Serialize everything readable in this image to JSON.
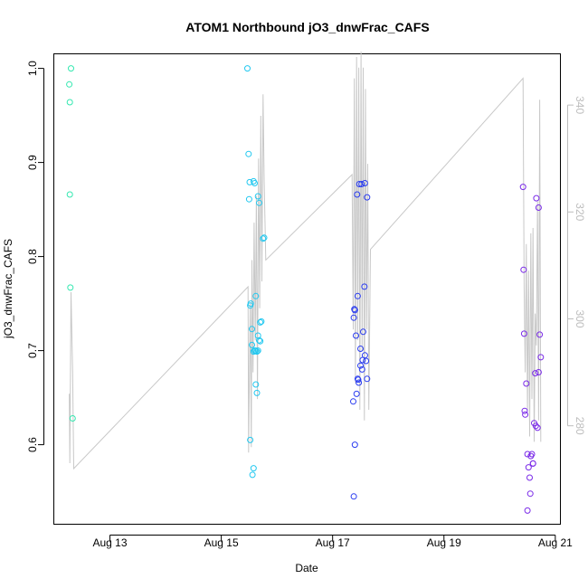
{
  "chart_data": {
    "type": "scatter",
    "title": "ATOM1 Northbound jO3_dnwFrac_CAFS",
    "xlabel": "Date",
    "ylabel": "jO3_dnwFrac_CAFS",
    "x_unit": "date (fractional day of August)",
    "xlim": [
      12.0,
      21.1
    ],
    "ylim": [
      0.515,
      1.015
    ],
    "x_ticks": [
      {
        "value": 13,
        "label": "Aug 13"
      },
      {
        "value": 15,
        "label": "Aug 15"
      },
      {
        "value": 17,
        "label": "Aug 17"
      },
      {
        "value": 19,
        "label": "Aug 19"
      },
      {
        "value": 21,
        "label": "Aug 21"
      }
    ],
    "y_ticks": [
      0.6,
      0.7,
      0.8,
      0.9,
      1.0
    ],
    "y_tick_labels": [
      "0.6",
      "0.7",
      "0.8",
      "0.9",
      "1.0"
    ],
    "y2_ticks": [
      280,
      300,
      320,
      340
    ],
    "y2_tick_labels": [
      "280",
      "300",
      "320",
      "340"
    ],
    "y2lim": [
      261.5,
      349.5
    ],
    "grid": false,
    "legend": "none",
    "colors": {
      "overlay_line": "#c8c8c8",
      "right_axis": "#bdbdbd"
    },
    "series": [
      {
        "color": "#33e8b0",
        "x": [
          12.27,
          12.28,
          12.28,
          12.29,
          12.3,
          12.33
        ],
        "y": [
          0.983,
          0.964,
          0.866,
          0.767,
          1.0,
          0.628
        ]
      },
      {
        "color": "#22c8f0",
        "x": [
          15.47,
          15.49,
          15.5,
          15.51,
          15.52,
          15.55,
          15.55,
          15.58,
          15.6,
          15.62,
          15.64,
          15.66,
          15.68,
          15.7,
          15.75,
          15.52,
          15.56,
          15.58,
          15.6,
          15.62,
          15.64,
          15.66,
          15.68,
          15.72,
          15.77,
          15.53,
          15.58,
          15.62,
          15.66,
          15.7
        ],
        "y": [
          1.0,
          0.909,
          0.861,
          0.879,
          0.748,
          0.723,
          0.706,
          0.699,
          0.7,
          0.664,
          0.655,
          0.864,
          0.857,
          0.73,
          0.819,
          0.605,
          0.568,
          0.575,
          0.878,
          0.758,
          0.699,
          0.716,
          0.711,
          0.731,
          0.82,
          0.75,
          0.88,
          0.7,
          0.7,
          0.71
        ]
      },
      {
        "color": "#2a3cf0",
        "x": [
          17.37,
          17.38,
          17.39,
          17.4,
          17.42,
          17.44,
          17.45,
          17.47,
          17.48,
          17.5,
          17.52,
          17.53,
          17.55,
          17.57,
          17.58,
          17.6,
          17.62,
          17.38,
          17.4,
          17.43,
          17.46,
          17.5,
          17.54,
          17.58,
          17.62,
          17.45
        ],
        "y": [
          0.646,
          0.735,
          0.744,
          0.743,
          0.716,
          0.866,
          0.758,
          0.666,
          0.877,
          0.702,
          0.877,
          0.68,
          0.72,
          0.768,
          0.878,
          0.689,
          0.863,
          0.545,
          0.6,
          0.654,
          0.669,
          0.684,
          0.69,
          0.695,
          0.67,
          0.67
        ]
      },
      {
        "color": "#7a2ae8",
        "x": [
          20.42,
          20.43,
          20.44,
          20.45,
          20.46,
          20.48,
          20.5,
          20.52,
          20.54,
          20.56,
          20.58,
          20.6,
          20.62,
          20.64,
          20.66,
          20.68,
          20.7,
          20.72,
          20.74,
          20.5,
          20.55,
          20.6,
          20.65,
          20.7
        ],
        "y": [
          0.874,
          0.786,
          0.718,
          0.636,
          0.632,
          0.665,
          0.59,
          0.576,
          0.565,
          0.588,
          0.59,
          0.58,
          0.623,
          0.676,
          0.862,
          0.618,
          0.852,
          0.717,
          0.693,
          0.53,
          0.548,
          0.58,
          0.62,
          0.677
        ]
      }
    ],
    "overlay_line": {
      "axis": "right",
      "x": [
        12.27,
        12.28,
        12.3,
        12.33,
        12.35,
        15.48,
        15.49,
        15.5,
        15.52,
        15.54,
        15.55,
        15.57,
        15.59,
        15.61,
        15.63,
        15.65,
        15.67,
        15.69,
        15.71,
        15.73,
        15.75,
        15.77,
        15.8,
        17.35,
        17.37,
        17.39,
        17.41,
        17.43,
        17.45,
        17.47,
        17.49,
        17.51,
        17.53,
        17.55,
        17.57,
        17.59,
        17.61,
        17.63,
        17.65,
        17.68,
        20.42,
        20.44,
        20.46,
        20.48,
        20.5,
        20.52,
        20.54,
        20.56,
        20.58,
        20.6,
        20.62,
        20.64,
        20.66,
        20.68,
        20.7,
        20.72,
        20.74
      ],
      "y": [
        286,
        273,
        305,
        290,
        272,
        306,
        275,
        285,
        303,
        276,
        311,
        290,
        318,
        296,
        323,
        285,
        330,
        302,
        338,
        307,
        342,
        326,
        311,
        327,
        298,
        345,
        288,
        349,
        296,
        347,
        283,
        350,
        294,
        347,
        281,
        343,
        298,
        329,
        283,
        313,
        345,
        306,
        290,
        314,
        283,
        309,
        278,
        316,
        285,
        317,
        277,
        301,
        295,
        322,
        281,
        341,
        277
      ]
    }
  }
}
